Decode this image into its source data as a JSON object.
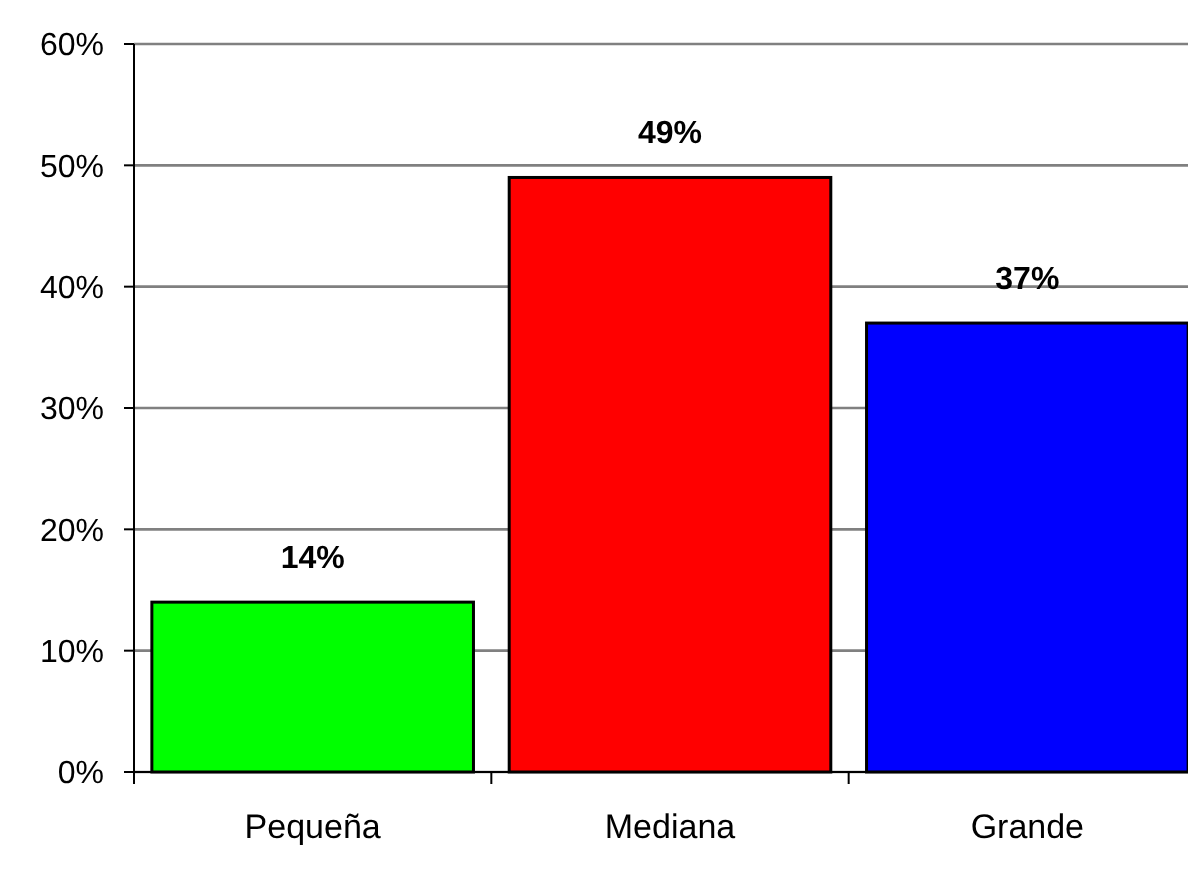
{
  "chart_data": {
    "type": "bar",
    "categories": [
      "Pequeña",
      "Mediana",
      "Grande"
    ],
    "values": [
      14,
      49,
      37
    ],
    "colors": [
      "#00ff00",
      "#ff0000",
      "#0000ff"
    ],
    "value_labels": [
      "14%",
      "49%",
      "37%"
    ],
    "ylim": [
      0,
      60
    ],
    "yticks": [
      {
        "value": 0,
        "label": "0%"
      },
      {
        "value": 10,
        "label": "10%"
      },
      {
        "value": 20,
        "label": "20%"
      },
      {
        "value": 30,
        "label": "30%"
      },
      {
        "value": 40,
        "label": "40%"
      },
      {
        "value": 50,
        "label": "50%"
      },
      {
        "value": 60,
        "label": "60%"
      }
    ],
    "grid": "y"
  }
}
